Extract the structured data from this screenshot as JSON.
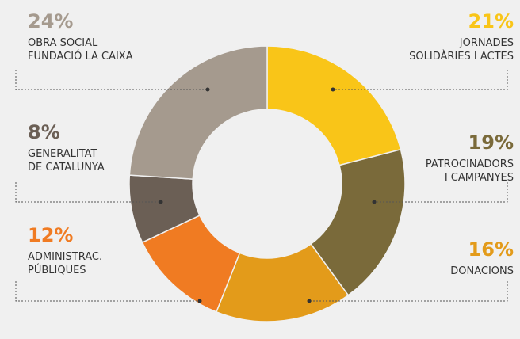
{
  "chart_data": {
    "type": "donut",
    "categories": [
      "JORNADES\nSOLIDÀRIES I ACTES",
      "PATROCINADORS\nI CAMPANYES",
      "DONACIONS",
      "ADMINISTRAC.\nPÚBLIQUES",
      "GENERALITAT\nDE CATALUNYA",
      "OBRA SOCIAL\nFUNDACIÓ LA CAIXA"
    ],
    "values": [
      21,
      19,
      16,
      12,
      8,
      24
    ],
    "value_labels": [
      "21%",
      "19%",
      "16%",
      "12%",
      "8%",
      "24%"
    ],
    "colors": [
      "#f9c518",
      "#7a6a3a",
      "#e39b1a",
      "#f07b22",
      "#6b5f55",
      "#a59a8e"
    ]
  }
}
